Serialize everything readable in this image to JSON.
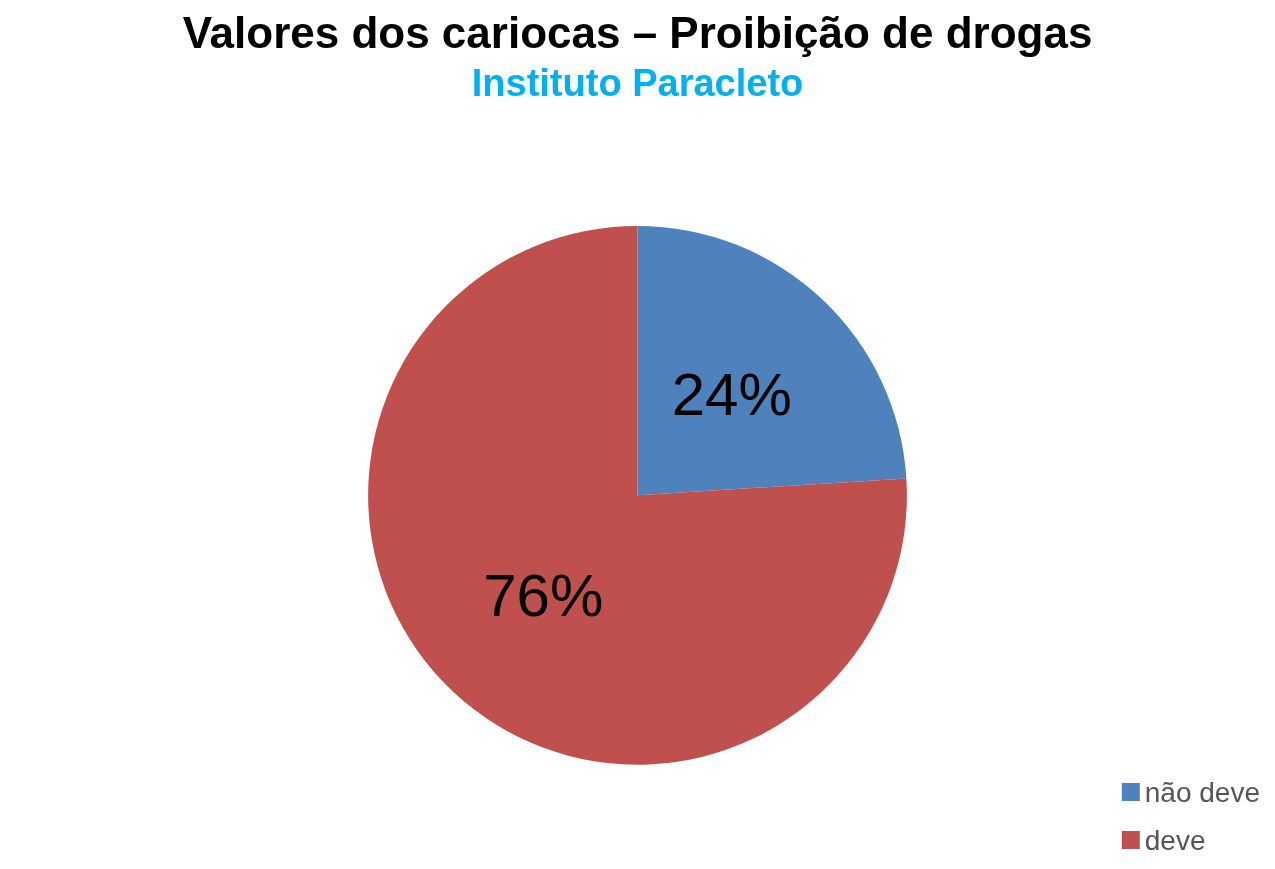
{
  "chart_data": {
    "type": "pie",
    "title": "Valores dos cariocas – Proibição de drogas",
    "subtitle": "Instituto Paracleto",
    "categories": [
      "não deve",
      "deve"
    ],
    "values": [
      24,
      76
    ],
    "colors": [
      "#4f81bd",
      "#c0504d"
    ],
    "value_labels": [
      "24%",
      "76%"
    ],
    "legend": "bottom right"
  }
}
